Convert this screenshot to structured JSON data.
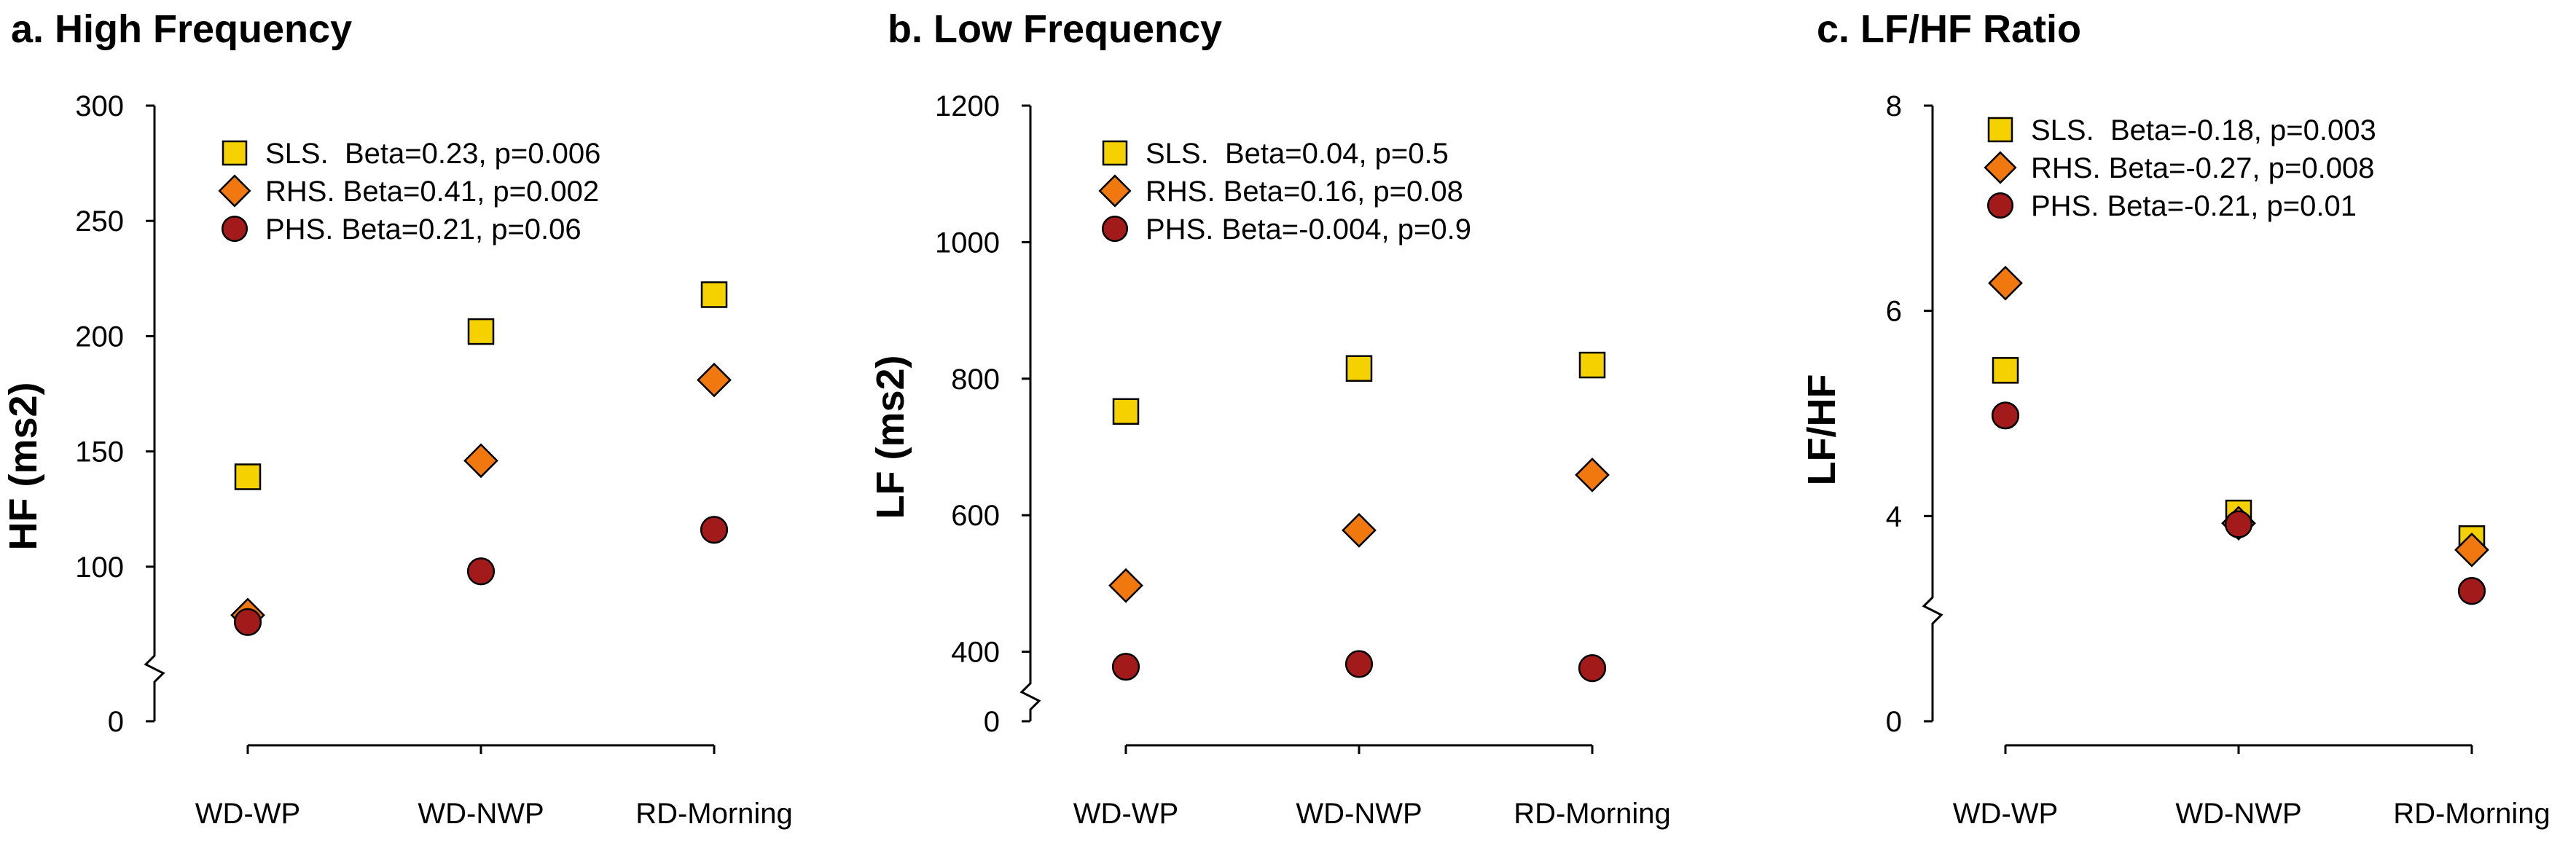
{
  "chart_data": [
    {
      "type": "scatter",
      "title": "a. High Frequency",
      "ylabel": "HF (ms2)",
      "xlabel": "",
      "categories": [
        "WD-WP",
        "WD-NWP",
        "RD-Morning"
      ],
      "ylim": [
        75,
        300
      ],
      "yticks": [
        100,
        150,
        200,
        250,
        300
      ],
      "break_label": "0",
      "series": [
        {
          "name": "SLS",
          "label": "SLS.  Beta=0.23, p=0.006",
          "marker": "square",
          "color": "#F5D100",
          "values": [
            139,
            202,
            218
          ]
        },
        {
          "name": "RHS",
          "label": "RHS. Beta=0.41, p=0.002",
          "marker": "diamond",
          "color": "#F0780F",
          "values": [
            79,
            146,
            181
          ]
        },
        {
          "name": "PHS",
          "label": "PHS. Beta=0.21, p=0.06",
          "marker": "circle",
          "color": "#A31A1A",
          "values": [
            76,
            98,
            116
          ]
        }
      ]
    },
    {
      "type": "scatter",
      "title": "b. Low Frequency",
      "ylabel": "LF (ms2)",
      "xlabel": "",
      "categories": [
        "WD-WP",
        "WD-NWP",
        "RD-Morning"
      ],
      "ylim": [
        390,
        1200
      ],
      "yticks": [
        400,
        600,
        800,
        1000,
        1200
      ],
      "break_label": "0",
      "series": [
        {
          "name": "SLS",
          "label": "SLS.  Beta=0.04, p=0.5",
          "marker": "square",
          "color": "#F5D100",
          "values": [
            752,
            815,
            820
          ]
        },
        {
          "name": "RHS",
          "label": "RHS. Beta=0.16, p=0.08",
          "marker": "diamond",
          "color": "#F0780F",
          "values": [
            497,
            578,
            659
          ]
        },
        {
          "name": "PHS",
          "label": "PHS. Beta=-0.004, p=0.9",
          "marker": "circle",
          "color": "#A31A1A",
          "values": [
            378,
            382,
            376
          ]
        }
      ]
    },
    {
      "type": "scatter",
      "title": "c. LF/HF Ratio",
      "ylabel": "LF/HF",
      "xlabel": "",
      "categories": [
        "WD-WP",
        "WD-NWP",
        "RD-Morning"
      ],
      "ylim": [
        2,
        8
      ],
      "yticks": [
        4,
        6,
        8
      ],
      "break_label": "0",
      "series": [
        {
          "name": "SLS",
          "label": "SLS.  Beta=-0.18, p=0.003",
          "marker": "square",
          "color": "#F5D100",
          "values": [
            5.42,
            4.03,
            3.78
          ]
        },
        {
          "name": "RHS",
          "label": "RHS. Beta=-0.27, p=0.008",
          "marker": "diamond",
          "color": "#F0780F",
          "values": [
            6.27,
            3.93,
            3.67
          ]
        },
        {
          "name": "PHS",
          "label": "PHS. Beta=-0.21, p=0.01",
          "marker": "circle",
          "color": "#A31A1A",
          "values": [
            4.98,
            3.92,
            3.27
          ]
        }
      ]
    }
  ]
}
